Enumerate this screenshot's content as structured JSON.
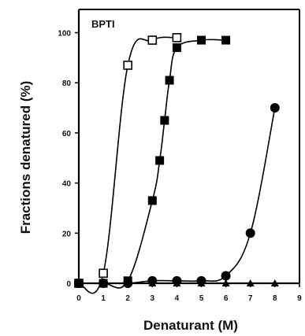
{
  "chart_data": {
    "type": "scatter",
    "annotation": "BPTI",
    "xlabel": "Denaturant (M)",
    "ylabel": "Fractions denatured (%)",
    "xlim": [
      0,
      9
    ],
    "ylim": [
      0,
      110
    ],
    "xticks": [
      "0",
      "1",
      "2",
      "3",
      "4",
      "5",
      "6",
      "7",
      "8",
      "9"
    ],
    "yticks": [
      "0",
      "20",
      "40",
      "60",
      "80",
      "100"
    ],
    "grid": false,
    "legend": "none",
    "series": [
      {
        "marker": "open-square",
        "x": [
          0,
          1,
          2,
          3,
          4
        ],
        "y": [
          0,
          4,
          87,
          97,
          98
        ]
      },
      {
        "marker": "filled-square",
        "x": [
          0,
          1,
          2,
          3,
          3.3,
          3.5,
          3.7,
          4,
          5,
          6
        ],
        "y": [
          0,
          0,
          1,
          33,
          49,
          65,
          81,
          94,
          97,
          97
        ]
      },
      {
        "marker": "filled-circle",
        "x": [
          0,
          1,
          2,
          3,
          4,
          5,
          6,
          7,
          8
        ],
        "y": [
          0,
          0,
          0,
          1,
          1,
          1,
          3,
          20,
          70
        ]
      },
      {
        "marker": "filled-triangle",
        "x": [
          0,
          1,
          2,
          3,
          4,
          5,
          6,
          7,
          8
        ],
        "y": [
          0,
          0,
          0,
          0,
          0,
          0,
          0,
          0,
          0
        ]
      }
    ]
  }
}
